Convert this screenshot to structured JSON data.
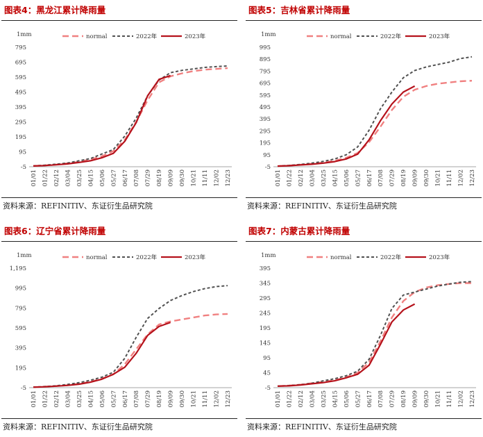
{
  "source": "资料来源：REFINITIV、东证衍生品研究院",
  "panels": [
    {
      "title": "图表4：黑龙江累计降雨量"
    },
    {
      "title": "图表5：吉林省累计降雨量"
    },
    {
      "title": "图表6：辽宁省累计降雨量"
    },
    {
      "title": "图表7：内蒙古累计降雨量"
    }
  ],
  "colors": {
    "normal": "#f08080",
    "y2022": "#505050",
    "y2023": "#b5121b"
  },
  "chart_data": [
    {
      "type": "line",
      "unit_label": "1mm",
      "x": [
        "01/01",
        "01/22",
        "02/12",
        "03/04",
        "03/25",
        "04/15",
        "05/06",
        "05/27",
        "06/17",
        "07/08",
        "07/29",
        "08/19",
        "09/09",
        "09/30",
        "10/21",
        "11/11",
        "12/02",
        "12/23"
      ],
      "yticks": [
        "795",
        "695",
        "595",
        "495",
        "395",
        "295",
        "195",
        "95",
        "-5"
      ],
      "ylim": [
        -5,
        795
      ],
      "legend": [
        "normal",
        "2022年",
        "2023年"
      ],
      "series": [
        {
          "name": "normal",
          "values": [
            0,
            4,
            10,
            18,
            28,
            45,
            65,
            100,
            175,
            295,
            440,
            560,
            600,
            620,
            635,
            645,
            650,
            655
          ]
        },
        {
          "name": "2022年",
          "values": [
            0,
            5,
            12,
            20,
            35,
            50,
            80,
            110,
            200,
            320,
            470,
            575,
            625,
            640,
            650,
            660,
            665,
            670
          ]
        },
        {
          "name": "2023年",
          "values": [
            0,
            3,
            8,
            14,
            24,
            35,
            55,
            85,
            165,
            290,
            470,
            580,
            605,
            null,
            null,
            null,
            null,
            null
          ]
        }
      ]
    },
    {
      "type": "line",
      "unit_label": "1mm",
      "x": [
        "01/01",
        "01/22",
        "02/12",
        "03/04",
        "03/25",
        "04/15",
        "05/06",
        "05/27",
        "06/17",
        "07/08",
        "07/29",
        "08/19",
        "09/09",
        "09/30",
        "10/21",
        "11/11",
        "12/02",
        "12/23"
      ],
      "yticks": [
        "995",
        "895",
        "795",
        "695",
        "595",
        "495",
        "395",
        "295",
        "195",
        "95",
        "-5"
      ],
      "ylim": [
        -5,
        995
      ],
      "legend": [
        "normal",
        "2022年",
        "2023年"
      ],
      "series": [
        {
          "name": "normal",
          "values": [
            0,
            5,
            12,
            20,
            30,
            45,
            70,
            110,
            200,
            330,
            470,
            580,
            640,
            670,
            690,
            700,
            710,
            715
          ]
        },
        {
          "name": "2022年",
          "values": [
            0,
            6,
            14,
            25,
            40,
            60,
            95,
            160,
            300,
            480,
            620,
            740,
            800,
            830,
            850,
            870,
            900,
            915
          ]
        },
        {
          "name": "2023年",
          "values": [
            0,
            4,
            10,
            16,
            25,
            38,
            60,
            100,
            220,
            380,
            520,
            620,
            670,
            null,
            null,
            null,
            null,
            null
          ]
        }
      ]
    },
    {
      "type": "line",
      "unit_label": "1mm",
      "x": [
        "01/01",
        "01/22",
        "02/12",
        "03/04",
        "03/25",
        "04/15",
        "05/06",
        "05/27",
        "06/17",
        "07/08",
        "07/29",
        "08/19",
        "09/09",
        "09/30",
        "10/21",
        "11/11",
        "12/02",
        "12/23"
      ],
      "yticks": [
        "1,195",
        "995",
        "795",
        "595",
        "395",
        "195",
        "-5"
      ],
      "ylim": [
        -5,
        1195
      ],
      "legend": [
        "normal",
        "2022年",
        "2023年"
      ],
      "series": [
        {
          "name": "normal",
          "values": [
            0,
            5,
            12,
            20,
            35,
            55,
            85,
            130,
            230,
            380,
            530,
            630,
            660,
            680,
            700,
            720,
            730,
            735
          ]
        },
        {
          "name": "2022年",
          "values": [
            0,
            6,
            14,
            28,
            45,
            70,
            100,
            150,
            290,
            500,
            690,
            790,
            870,
            920,
            960,
            990,
            1010,
            1020
          ]
        },
        {
          "name": "2023年",
          "values": [
            0,
            4,
            10,
            18,
            30,
            50,
            80,
            130,
            200,
            340,
            520,
            610,
            650,
            null,
            null,
            null,
            null,
            null
          ]
        }
      ]
    },
    {
      "type": "line",
      "unit_label": "1mm",
      "x": [
        "01/01",
        "01/22",
        "02/12",
        "03/04",
        "03/25",
        "04/15",
        "05/06",
        "05/27",
        "06/17",
        "07/08",
        "07/29",
        "08/19",
        "09/09",
        "09/30",
        "10/21",
        "11/11",
        "12/02",
        "12/23"
      ],
      "yticks": [
        "395",
        "345",
        "295",
        "245",
        "195",
        "145",
        "95",
        "45",
        "-5"
      ],
      "ylim": [
        -5,
        395
      ],
      "legend": [
        "normal",
        "2022年",
        "2023年"
      ],
      "series": [
        {
          "name": "normal",
          "values": [
            0,
            2,
            5,
            10,
            15,
            20,
            30,
            45,
            80,
            150,
            230,
            285,
            315,
            330,
            338,
            342,
            345,
            345
          ]
        },
        {
          "name": "2022年",
          "values": [
            0,
            2,
            5,
            10,
            18,
            25,
            35,
            50,
            90,
            170,
            260,
            305,
            315,
            325,
            335,
            342,
            348,
            350
          ]
        },
        {
          "name": "2023年",
          "values": [
            0,
            1,
            4,
            8,
            12,
            18,
            28,
            40,
            70,
            140,
            215,
            255,
            275,
            null,
            null,
            null,
            null,
            null
          ]
        }
      ]
    }
  ]
}
